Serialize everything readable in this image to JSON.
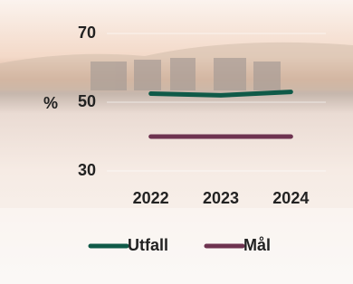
{
  "chart_data": {
    "type": "line",
    "y_label": "%",
    "categories": [
      "2022",
      "2023",
      "2024"
    ],
    "series": [
      {
        "name": "Utfall",
        "color": "#0f5a48",
        "values": [
          52.5,
          52,
          53
        ]
      },
      {
        "name": "Mål",
        "color": "#6e3350",
        "values": [
          40,
          40,
          40
        ]
      }
    ],
    "ylim": [
      30,
      70
    ],
    "yticks": [
      30,
      50,
      70
    ],
    "grid": true
  }
}
